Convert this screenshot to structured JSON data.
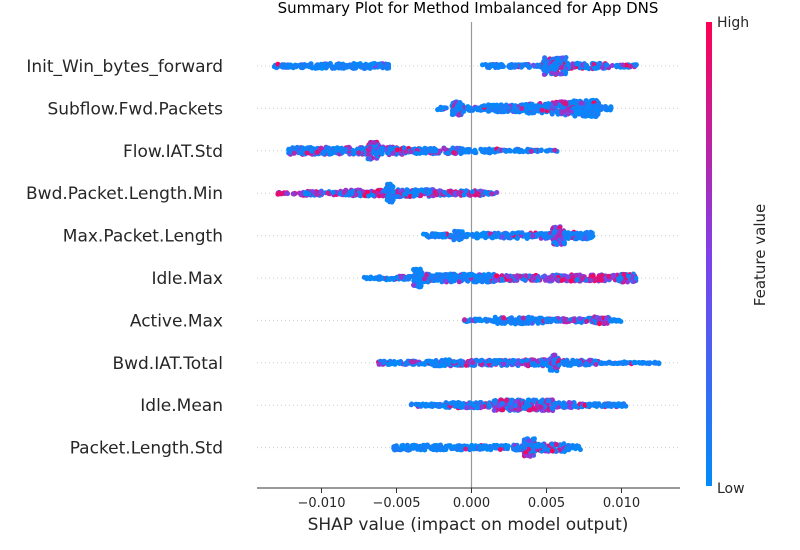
{
  "chart_data": {
    "type": "scatter",
    "subtype": "shap-beeswarm-summary",
    "title": "Summary Plot for Method Imbalanced for App DNS",
    "xlabel": "SHAP value (impact on model output)",
    "ylabel": "",
    "xlim": [
      -0.0143,
      0.0139
    ],
    "xticks": [
      -0.01,
      -0.005,
      0.0,
      0.005,
      0.01
    ],
    "xtick_labels": [
      "−0.010",
      "−0.005",
      "0.000",
      "0.005",
      "0.010"
    ],
    "zero_line": 0.0,
    "colorbar": {
      "label": "Feature value",
      "high_label": "High",
      "low_label": "Low",
      "low_color": "#008bfb",
      "mid_color": "#7f41ea",
      "high_color": "#ff0052"
    },
    "features": [
      {
        "name": "Init_Win_bytes_forward",
        "segments": [
          [
            -0.0132,
            -0.0109,
            0.1,
            0.2
          ],
          [
            -0.0108,
            -0.0055,
            0.05,
            0.28
          ],
          [
            0.0007,
            0.0047,
            0.1,
            0.18
          ],
          [
            0.0048,
            0.0063,
            0.4,
            0.95
          ],
          [
            0.0063,
            0.0092,
            0.35,
            0.3
          ],
          [
            0.0092,
            0.011,
            0.15,
            0.15
          ]
        ]
      },
      {
        "name": "Subflow.Fwd.Packets",
        "segments": [
          [
            -0.0023,
            -0.0014,
            0.05,
            0.14
          ],
          [
            -0.0013,
            -0.0005,
            0.2,
            0.75
          ],
          [
            -0.0005,
            0.0008,
            0.15,
            0.25
          ],
          [
            0.0008,
            0.0036,
            0.1,
            0.4
          ],
          [
            0.0036,
            0.0053,
            0.15,
            0.55
          ],
          [
            0.0053,
            0.0067,
            0.5,
            0.75
          ],
          [
            0.0067,
            0.0077,
            0.15,
            0.9
          ],
          [
            0.0077,
            0.0085,
            0.1,
            1.0
          ],
          [
            0.0085,
            0.0093,
            0.05,
            0.25
          ]
        ]
      },
      {
        "name": "Flow.IAT.Std",
        "segments": [
          [
            -0.0122,
            -0.0069,
            0.35,
            0.4
          ],
          [
            -0.0069,
            -0.0062,
            0.4,
            0.95
          ],
          [
            -0.0062,
            -0.0045,
            0.45,
            0.45
          ],
          [
            -0.0045,
            -0.0005,
            0.25,
            0.32
          ],
          [
            -0.0005,
            0.0002,
            0.1,
            0.15
          ],
          [
            0.0002,
            0.0018,
            0.05,
            0.25
          ],
          [
            0.0018,
            0.0027,
            0.05,
            0.1
          ],
          [
            0.0027,
            0.0038,
            0.05,
            0.18
          ],
          [
            0.0038,
            0.0057,
            0.05,
            0.1
          ]
        ]
      },
      {
        "name": "Bwd.Packet.Length.Min",
        "segments": [
          [
            -0.013,
            -0.0115,
            0.9,
            0.12
          ],
          [
            -0.0115,
            -0.0085,
            0.6,
            0.25
          ],
          [
            -0.0085,
            -0.0058,
            0.55,
            0.35
          ],
          [
            -0.0058,
            -0.0052,
            0.1,
            1.0
          ],
          [
            -0.0052,
            -0.0025,
            0.35,
            0.4
          ],
          [
            -0.0025,
            0.0009,
            0.65,
            0.28
          ],
          [
            0.0009,
            0.002,
            0.4,
            0.12
          ]
        ]
      },
      {
        "name": "Max.Packet.Length",
        "segments": [
          [
            -0.0032,
            -0.0012,
            0.1,
            0.2
          ],
          [
            -0.0012,
            -0.0006,
            0.1,
            0.5
          ],
          [
            -0.0006,
            0.0001,
            0.05,
            0.15
          ],
          [
            0.0001,
            0.0027,
            0.15,
            0.28
          ],
          [
            0.0027,
            0.0054,
            0.3,
            0.32
          ],
          [
            0.0054,
            0.0062,
            0.45,
            1.0
          ],
          [
            0.0062,
            0.0081,
            0.2,
            0.38
          ]
        ]
      },
      {
        "name": "Idle.Max",
        "segments": [
          [
            -0.0072,
            -0.0062,
            0.05,
            0.1
          ],
          [
            -0.0062,
            -0.0039,
            0.05,
            0.2
          ],
          [
            -0.0039,
            -0.0033,
            0.05,
            1.0
          ],
          [
            -0.0033,
            0.0015,
            0.1,
            0.45
          ],
          [
            0.0015,
            0.0048,
            0.55,
            0.3
          ],
          [
            0.0048,
            0.0098,
            0.85,
            0.35
          ],
          [
            0.0098,
            0.011,
            0.65,
            0.45
          ]
        ]
      },
      {
        "name": "Active.Max",
        "segments": [
          [
            -0.0005,
            0.0015,
            0.1,
            0.15
          ],
          [
            0.0015,
            0.0034,
            0.1,
            0.4
          ],
          [
            0.0034,
            0.0048,
            0.12,
            0.35
          ],
          [
            0.0048,
            0.0068,
            0.5,
            0.22
          ],
          [
            0.0068,
            0.0082,
            0.5,
            0.25
          ],
          [
            0.0082,
            0.0092,
            0.65,
            0.4
          ],
          [
            0.0092,
            0.0101,
            0.1,
            0.12
          ]
        ]
      },
      {
        "name": "Bwd.IAT.Total",
        "segments": [
          [
            -0.0062,
            -0.0025,
            0.2,
            0.2
          ],
          [
            -0.0025,
            -0.0012,
            0.25,
            0.35
          ],
          [
            -0.0012,
            0.0027,
            0.35,
            0.3
          ],
          [
            0.0027,
            0.0052,
            0.45,
            0.35
          ],
          [
            0.0052,
            0.0058,
            0.55,
            0.9
          ],
          [
            0.0058,
            0.0085,
            0.35,
            0.3
          ],
          [
            0.0085,
            0.0125,
            0.05,
            0.1
          ]
        ]
      },
      {
        "name": "Idle.Mean",
        "segments": [
          [
            -0.0042,
            -0.0018,
            0.05,
            0.15
          ],
          [
            -0.0018,
            0.0015,
            0.3,
            0.3
          ],
          [
            0.0015,
            0.0055,
            0.55,
            0.6
          ],
          [
            0.0055,
            0.0072,
            0.15,
            0.3
          ],
          [
            0.0072,
            0.0103,
            0.25,
            0.18
          ]
        ]
      },
      {
        "name": "Packet.Length.Std",
        "segments": [
          [
            -0.0052,
            -0.0018,
            0.05,
            0.3
          ],
          [
            -0.0018,
            0.0028,
            0.12,
            0.25
          ],
          [
            0.0028,
            0.0035,
            0.35,
            0.32
          ],
          [
            0.0035,
            0.0042,
            0.5,
            1.0
          ],
          [
            0.0042,
            0.0062,
            0.55,
            0.45
          ],
          [
            0.0062,
            0.0073,
            0.1,
            0.25
          ]
        ]
      }
    ]
  }
}
